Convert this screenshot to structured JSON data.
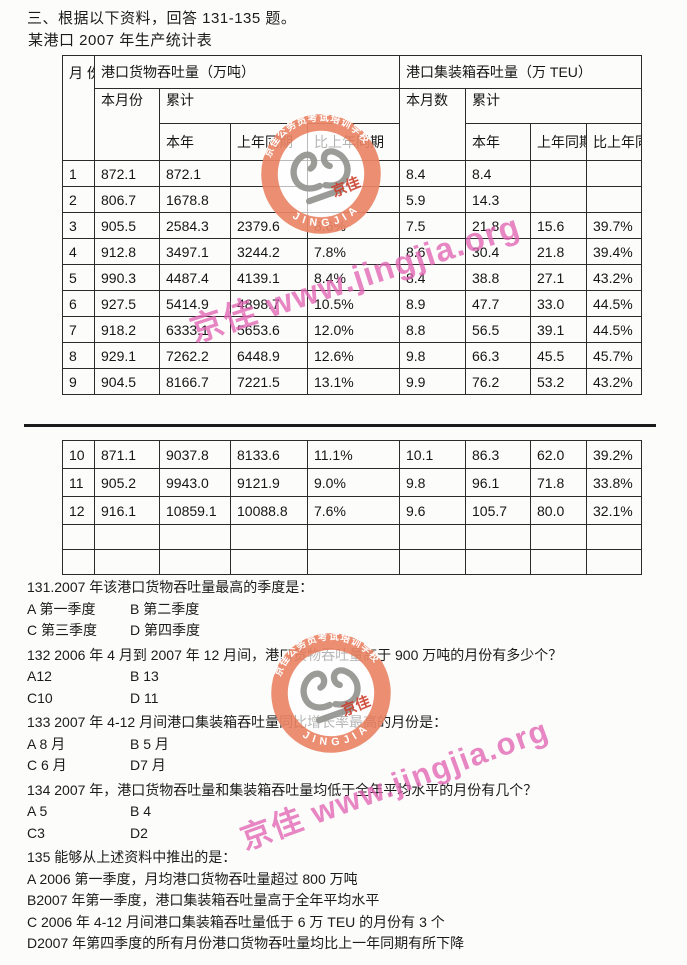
{
  "page": {
    "section_heading": "三、根据以下资料，回答 131-135 题。",
    "table_title": "某港口 2007 年生产统计表"
  },
  "table": {
    "col_month": "月\n份",
    "group_cargo": "港口货物吞吐量（万吨）",
    "group_container": "港口集装箱吞吐量（万 TEU）",
    "cargo_current_month": "本月份",
    "cargo_cumulative": "累计",
    "container_current_month": "本月数",
    "container_cumulative": "累计",
    "sub_this_year_cargo": "本年",
    "sub_last_year_cargo": "上年同期",
    "sub_vs_last_year_cargo": "比上年同期",
    "sub_this_year_container": "本年",
    "sub_last_year_container": "上年同期",
    "sub_vs_last_year_container": "比上年同期",
    "rows_part1": [
      [
        "1",
        "872.1",
        "872.1",
        "",
        "",
        "8.4",
        "8.4",
        "",
        ""
      ],
      [
        "2",
        "806.7",
        "1678.8",
        "",
        "",
        "5.9",
        "14.3",
        "",
        ""
      ],
      [
        "3",
        "905.5",
        "2584.3",
        "2379.6",
        "8.6%",
        "7.5",
        "21.8",
        "15.6",
        "39.7%"
      ],
      [
        "4",
        "912.8",
        "3497.1",
        "3244.2",
        "7.8%",
        "8.6",
        "30.4",
        "21.8",
        "39.4%"
      ],
      [
        "5",
        "990.3",
        "4487.4",
        "4139.1",
        "8.4%",
        "8.4",
        "38.8",
        "27.1",
        "43.2%"
      ],
      [
        "6",
        "927.5",
        "5414.9",
        "4898.7",
        "10.5%",
        "8.9",
        "47.7",
        "33.0",
        "44.5%"
      ],
      [
        "7",
        "918.2",
        "6333.1",
        "5653.6",
        "12.0%",
        "8.8",
        "56.5",
        "39.1",
        "44.5%"
      ],
      [
        "8",
        "929.1",
        "7262.2",
        "6448.9",
        "12.6%",
        "9.8",
        "66.3",
        "45.5",
        "45.7%"
      ],
      [
        "9",
        "904.5",
        "8166.7",
        "7221.5",
        "13.1%",
        "9.9",
        "76.2",
        "53.2",
        "43.2%"
      ]
    ],
    "rows_part2": [
      [
        "10",
        "871.1",
        "9037.8",
        "8133.6",
        "11.1%",
        "10.1",
        "86.3",
        "62.0",
        "39.2%"
      ],
      [
        "11",
        "905.2",
        "9943.0",
        "9121.9",
        "9.0%",
        "9.8",
        "96.1",
        "71.8",
        "33.8%"
      ],
      [
        "12",
        "916.1",
        "10859.1",
        "10088.8",
        "7.6%",
        "9.6",
        "105.7",
        "80.0",
        "32.1%"
      ],
      [
        "",
        "",
        "",
        "",
        "",
        "",
        "",
        "",
        ""
      ],
      [
        "",
        "",
        "",
        "",
        "",
        "",
        "",
        "",
        ""
      ]
    ]
  },
  "questions": [
    {
      "stem": "131.2007 年该港口货物吞吐量最高的季度是：",
      "option_rows": [
        [
          "A 第一季度",
          "B 第二季度"
        ],
        [
          "C 第三季度",
          "D 第四季度"
        ]
      ]
    },
    {
      "stem": "132 2006 年 4 月到 2007 年 12 月间，港口货物吞吐量高于 900 万吨的月份有多少个？",
      "option_rows": [
        [
          "A12",
          "B 13"
        ],
        [
          "C10",
          "D 11"
        ]
      ]
    },
    {
      "stem": "133 2007 年 4-12 月间港口集装箱吞吐量同比增长率最高的月份是：",
      "option_rows": [
        [
          "A 8 月",
          "B 5 月"
        ],
        [
          "C 6 月",
          "D7 月"
        ]
      ]
    },
    {
      "stem": "134 2007 年，港口货物吞吐量和集装箱吞吐量均低于全年平均水平的月份有几个？",
      "option_rows": [
        [
          "A 5",
          "B 4"
        ],
        [
          "C3",
          "D2"
        ]
      ]
    },
    {
      "stem": "135 能够从上述资料中推出的是：",
      "option_rows": [
        [
          "A 2006 第一季度，月均港口货物吞吐量超过 800 万吨"
        ],
        [
          "B2007 年第一季度，港口集装箱吞吐量高于全年平均水平"
        ],
        [
          "C 2006 年 4-12 月间港口集装箱吞吐量低于 6 万 TEU 的月份有 3 个"
        ],
        [
          "D2007 年第四季度的所有月份港口货物吞吐量均比上一年同期有所下降"
        ]
      ]
    }
  ],
  "stamp": {
    "arc_top": "京佳公务员考试培训学校",
    "arc_bottom": "JINGJIA",
    "center_label": "京佳"
  },
  "watermark": {
    "text": "京佳 www.jingjia.org"
  },
  "colors": {
    "stamp_ring": "#e98465",
    "stamp_logo_gray": "#969692",
    "stamp_center_red": "#cc3a28",
    "watermark_pink": "#e064b4",
    "ink": "#1b1b1b"
  }
}
